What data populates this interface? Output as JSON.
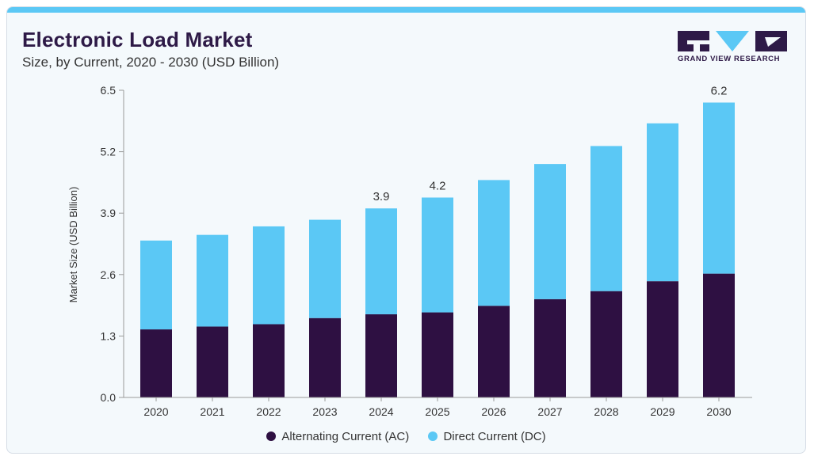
{
  "header": {
    "title": "Electronic Load Market",
    "subtitle": "Size, by Current, 2020 - 2030 (USD Billion)"
  },
  "brand": {
    "name": "GRAND VIEW RESEARCH",
    "logo_icon": "grand-view-research-logo",
    "dark_color": "#2e1a47",
    "light_color": "#5bc8f5"
  },
  "chart_data": {
    "type": "bar",
    "stacked": true,
    "categories": [
      "2020",
      "2021",
      "2022",
      "2023",
      "2024",
      "2025",
      "2026",
      "2027",
      "2028",
      "2029",
      "2030"
    ],
    "series": [
      {
        "name": "Alternating Current (AC)",
        "color": "#2e1042",
        "values": [
          1.44,
          1.5,
          1.55,
          1.68,
          1.76,
          1.8,
          1.94,
          2.08,
          2.25,
          2.46,
          2.62
        ]
      },
      {
        "name": "Direct Current (DC)",
        "color": "#5bc8f5",
        "values": [
          1.88,
          1.94,
          2.07,
          2.08,
          2.24,
          2.43,
          2.66,
          2.86,
          3.07,
          3.34,
          3.62
        ]
      }
    ],
    "totals_labeled": {
      "2024": "3.9",
      "2025": "4.2",
      "2030": "6.2"
    },
    "ylabel": "Market Size (USD Billion)",
    "ylim": [
      0,
      6.5
    ],
    "yticks": [
      "0.0",
      "1.3",
      "2.6",
      "3.9",
      "5.2",
      "6.5"
    ],
    "ytick_values": [
      0,
      1.3,
      2.6,
      3.9,
      5.2,
      6.5
    ],
    "grid": false,
    "legend_position": "bottom"
  }
}
